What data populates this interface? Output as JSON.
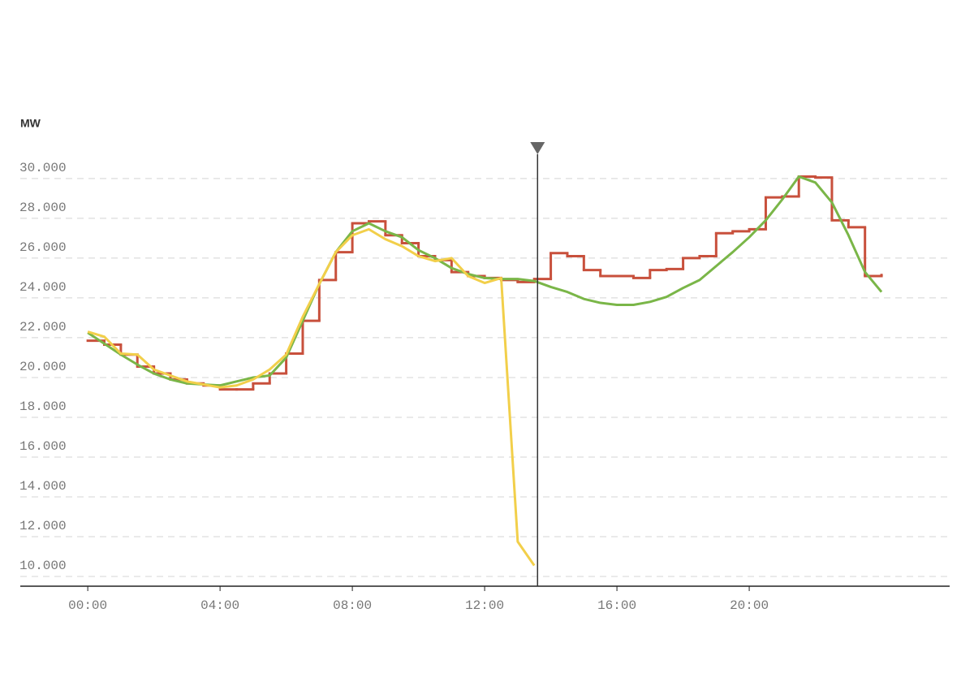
{
  "chart_data": {
    "type": "line",
    "y_label": "MW",
    "x": [
      0,
      0.5,
      1,
      1.5,
      2,
      2.5,
      3,
      3.5,
      4,
      4.5,
      5,
      5.5,
      6,
      6.5,
      7,
      7.5,
      8,
      8.5,
      9,
      9.5,
      10,
      10.5,
      11,
      11.5,
      12,
      12.5,
      13,
      13.5,
      14,
      14.5,
      15,
      15.5,
      16,
      16.5,
      17,
      17.5,
      18,
      18.5,
      19,
      19.5,
      20,
      20.5,
      21,
      21.5,
      22,
      22.5,
      23,
      23.5,
      24
    ],
    "series": [
      {
        "color": "#c8503c",
        "step": "after",
        "values": [
          21850,
          21650,
          21150,
          20550,
          20200,
          19900,
          19700,
          19600,
          19400,
          19400,
          19700,
          20200,
          21200,
          22850,
          24900,
          26300,
          27750,
          27850,
          27150,
          26750,
          26100,
          25900,
          25300,
          25100,
          25000,
          24900,
          24800,
          24950,
          26250,
          26100,
          25400,
          25100,
          25100,
          25000,
          25400,
          25450,
          26000,
          26100,
          27250,
          27350,
          27450,
          29050,
          29100,
          30100,
          30050,
          27900,
          27550,
          25100,
          25150
        ]
      },
      {
        "color": "#7ab648",
        "values": [
          22250,
          21700,
          21150,
          20650,
          20200,
          19900,
          19700,
          19650,
          19600,
          19800,
          20000,
          20100,
          21000,
          22850,
          24700,
          26300,
          27350,
          27750,
          27350,
          27050,
          26400,
          26000,
          25500,
          25200,
          25000,
          24950,
          24950,
          24850,
          24550,
          24300,
          23950,
          23750,
          23650,
          23650,
          23800,
          24050,
          24500,
          24900,
          25600,
          26300,
          27050,
          27900,
          28950,
          30100,
          29800,
          28800,
          27150,
          25300,
          24300
        ]
      },
      {
        "color": "#f2cf4a",
        "values": [
          22300,
          22050,
          21200,
          21150,
          20400,
          20100,
          19800,
          19650,
          19500,
          19600,
          19900,
          20400,
          21150,
          23050,
          24700,
          26300,
          27150,
          27450,
          26950,
          26600,
          26100,
          25850,
          26000,
          25100,
          24750,
          25000,
          11750,
          10550,
          null,
          null,
          null,
          null,
          null,
          null,
          null,
          null,
          null,
          null,
          null,
          null,
          null,
          null,
          null,
          null,
          null,
          null,
          null,
          null,
          null
        ]
      }
    ],
    "xlim": [
      -2.04,
      26.06
    ],
    "xticks": [
      {
        "value": 0,
        "label": "00:00"
      },
      {
        "value": 4,
        "label": "04:00"
      },
      {
        "value": 8,
        "label": "08:00"
      },
      {
        "value": 12,
        "label": "12:00"
      },
      {
        "value": 16,
        "label": "16:00"
      },
      {
        "value": 20,
        "label": "20:00"
      }
    ],
    "ylim": [
      9510,
      31220
    ],
    "yticks": [
      {
        "value": 10000,
        "label": "10.000"
      },
      {
        "value": 12000,
        "label": "12.000"
      },
      {
        "value": 14000,
        "label": "14.000"
      },
      {
        "value": 16000,
        "label": "16.000"
      },
      {
        "value": 18000,
        "label": "18.000"
      },
      {
        "value": 20000,
        "label": "20.000"
      },
      {
        "value": 22000,
        "label": "22.000"
      },
      {
        "value": 24000,
        "label": "24.000"
      },
      {
        "value": 26000,
        "label": "26.000"
      },
      {
        "value": 28000,
        "label": "28.000"
      },
      {
        "value": 30000,
        "label": "30.000"
      }
    ],
    "grid": true,
    "cursor_x": 13.6
  }
}
